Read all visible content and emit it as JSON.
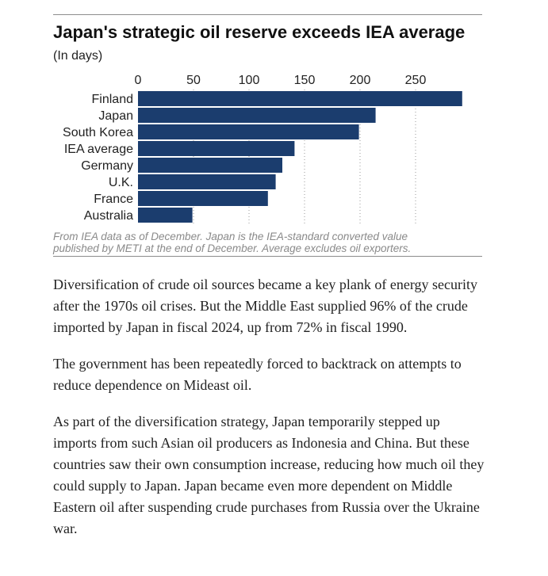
{
  "chart_data": {
    "type": "bar",
    "orientation": "horizontal",
    "title": "Japan's strategic oil reserve exceeds IEA average",
    "subtitle": "(In days)",
    "categories": [
      "Finland",
      "Japan",
      "South Korea",
      "IEA average",
      "Germany",
      "U.K.",
      "France",
      "Australia"
    ],
    "values": [
      292,
      214,
      199,
      141,
      130,
      124,
      117,
      49
    ],
    "xticks": [
      0,
      50,
      100,
      150,
      200,
      250
    ],
    "xlim": [
      0,
      295
    ],
    "xaxis_position": "top",
    "grid": "vertical dotted",
    "bar_color": "#1b3d6e",
    "note": [
      "From IEA data as of December. Japan is the IEA-standard converted value",
      "published by METI at the end of December. Average excludes oil exporters."
    ]
  },
  "article": {
    "paragraphs": [
      "Diversification of crude oil sources became a key plank of energy security after the 1970s oil crises. But the Middle East supplied 96% of the crude imported by Japan in fiscal 2024, up from 72% in fiscal 1990.",
      "The government has been repeatedly forced to backtrack on attempts to reduce dependence on Mideast oil.",
      "As part of the diversification strategy, Japan temporarily stepped up imports from such Asian oil producers as Indonesia and China. But these countries saw their own consumption increase, reducing how much oil they could supply to Japan. Japan became even more dependent on Middle Eastern oil after suspending crude purchases from Russia over the Ukraine war."
    ]
  }
}
